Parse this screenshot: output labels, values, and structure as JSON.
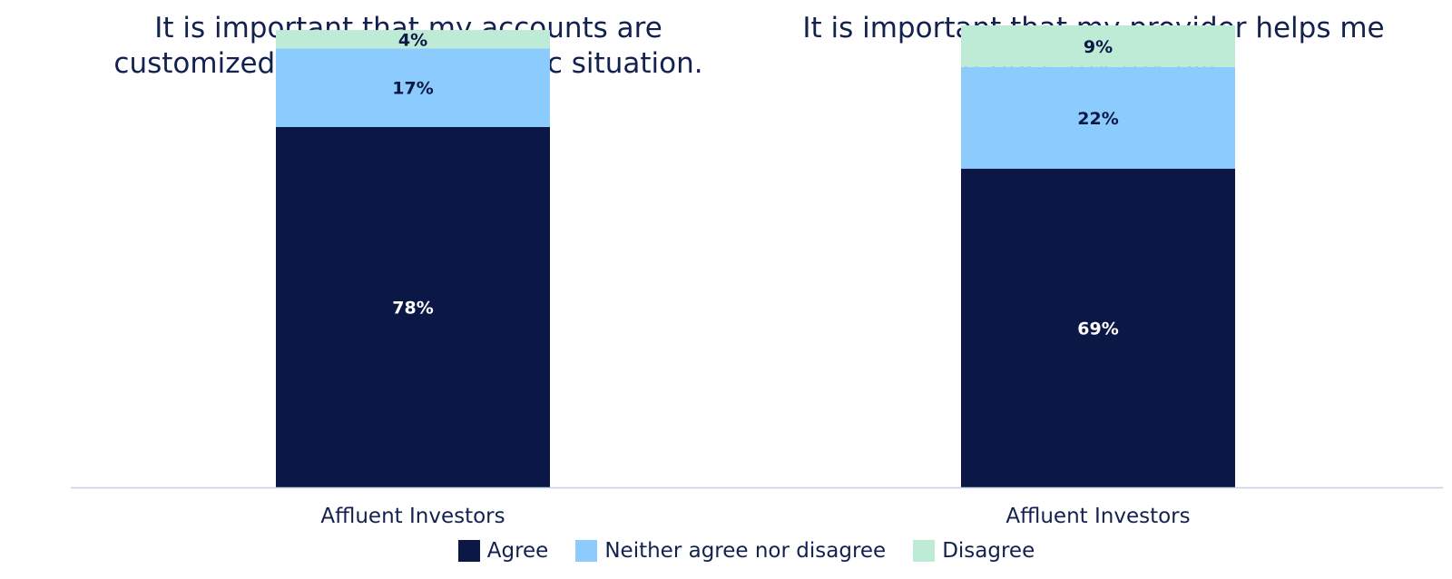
{
  "chart_data": [
    {
      "type": "bar",
      "stacked": true,
      "title": "It is important that my accounts are\ncustomized to meet my specific situation.",
      "categories": [
        "Affluent Investors"
      ],
      "series": [
        {
          "name": "Agree",
          "values": [
            78
          ],
          "label": "78%"
        },
        {
          "name": "Neither agree nor disagree",
          "values": [
            17
          ],
          "label": "17%"
        },
        {
          "name": "Disagree",
          "values": [
            4
          ],
          "label": "4%"
        }
      ],
      "ylim": [
        0,
        100
      ]
    },
    {
      "type": "bar",
      "stacked": true,
      "title": "It is important that my provider helps me\nreduce my tax bill.",
      "categories": [
        "Affluent Investors"
      ],
      "series": [
        {
          "name": "Agree",
          "values": [
            69
          ],
          "label": "69%"
        },
        {
          "name": "Neither agree nor disagree",
          "values": [
            22
          ],
          "label": "22%"
        },
        {
          "name": "Disagree",
          "values": [
            9
          ],
          "label": "9%"
        }
      ],
      "ylim": [
        0,
        100
      ]
    }
  ],
  "legend": {
    "placement": "bottom",
    "items": [
      {
        "name": "Agree",
        "color": "#0b1845"
      },
      {
        "name": "Neither agree nor disagree",
        "color": "#8ccbfd"
      },
      {
        "name": "Disagree",
        "color": "#bdebd6"
      }
    ]
  },
  "label_colors": {
    "Agree": "#ffffff",
    "Neither agree nor disagree": "#0b1845",
    "Disagree": "#0b1845"
  },
  "axis_color": "#c5d0e3"
}
